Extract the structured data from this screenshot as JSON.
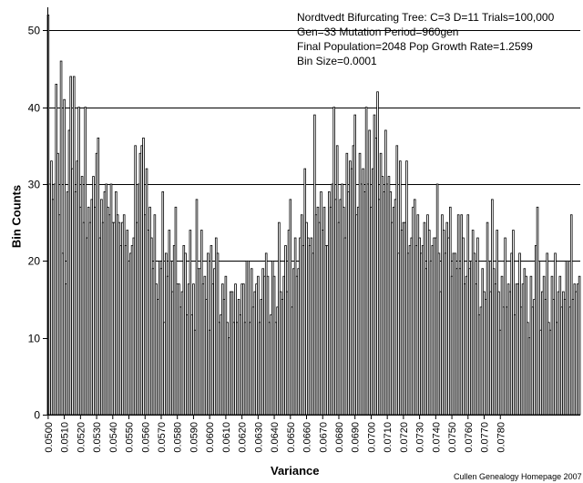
{
  "chart_data": {
    "type": "bar",
    "xlabel": "Variance",
    "ylabel": "Bin Counts",
    "ylim": [
      0,
      53
    ],
    "yticks": [
      0,
      10,
      20,
      30,
      40,
      50
    ],
    "grid": "horizontal",
    "x_start": 0.05,
    "bin_size": 0.0001,
    "xticks": [
      "0.0500",
      "0.0510",
      "0.0520",
      "0.0530",
      "0.0540",
      "0.0550",
      "0.0560",
      "0.0570",
      "0.0580",
      "0.0590",
      "0.0600",
      "0.0610",
      "0.0620",
      "0.0630",
      "0.0640",
      "0.0650",
      "0.0660",
      "0.0670",
      "0.0680",
      "0.0690",
      "0.0700",
      "0.0710",
      "0.0720",
      "0.0730",
      "0.0740",
      "0.0750",
      "0.0760",
      "0.0770",
      "0.0780"
    ],
    "annotations": [
      "Nordtvedt Bifurcating Tree: C=3 D=11 Trials=100,000",
      "Gen=33 Mutation Period=960gen",
      "Final Population=2048 Pop Growth Rate=1.2599",
      "Bin Size=0.0001"
    ],
    "credit": "Cullen Genealogy Homepage 2007",
    "values": [
      52,
      30,
      33,
      28,
      30,
      43,
      34,
      26,
      46,
      21,
      41,
      17,
      29,
      37,
      44,
      32,
      44,
      29,
      33,
      40,
      27,
      31,
      25,
      40,
      23,
      27,
      25,
      28,
      31,
      27,
      34,
      36,
      23,
      28,
      25,
      29,
      30,
      27,
      26,
      30,
      25,
      25,
      29,
      26,
      25,
      22,
      25,
      26,
      22,
      24,
      20,
      21,
      22,
      23,
      35,
      25,
      30,
      34,
      35,
      36,
      26,
      32,
      24,
      27,
      23,
      19,
      26,
      17,
      15,
      20,
      19,
      29,
      12,
      21,
      18,
      24,
      20,
      16,
      22,
      27,
      17,
      17,
      14,
      16,
      22,
      21,
      13,
      17,
      24,
      13,
      17,
      11,
      28,
      19,
      19,
      24,
      17,
      18,
      15,
      21,
      11,
      22,
      17,
      19,
      23,
      21,
      12,
      13,
      17,
      15,
      18,
      12,
      10,
      16,
      16,
      12,
      17,
      12,
      15,
      13,
      17,
      17,
      12,
      20,
      20,
      12,
      19,
      14,
      16,
      17,
      18,
      12,
      15,
      19,
      18,
      21,
      18,
      12,
      13,
      20,
      18,
      12,
      14,
      25,
      16,
      15,
      18,
      22,
      16,
      24,
      28,
      14,
      19,
      23,
      18,
      19,
      23,
      26,
      22,
      32,
      25,
      23,
      22,
      23,
      21,
      39,
      26,
      27,
      25,
      29,
      24,
      27,
      22,
      22,
      29,
      27,
      30,
      40,
      28,
      35,
      25,
      28,
      30,
      27,
      23,
      34,
      29,
      33,
      32,
      35,
      39,
      26,
      27,
      34,
      30,
      32,
      29,
      40,
      30,
      37,
      27,
      32,
      39,
      36,
      42,
      28,
      34,
      31,
      29,
      37,
      30,
      31,
      29,
      25,
      27,
      28,
      35,
      21,
      33,
      24,
      25,
      25,
      33,
      21,
      22,
      23,
      27,
      28,
      22,
      26,
      23,
      21,
      22,
      25,
      19,
      26,
      24,
      20,
      22,
      23,
      23,
      30,
      21,
      16,
      26,
      24,
      21,
      25,
      23,
      27,
      18,
      21,
      21,
      19,
      26,
      19,
      26,
      23,
      17,
      18,
      26,
      19,
      20,
      24,
      21,
      17,
      23,
      13,
      14,
      19,
      16,
      15,
      25,
      20,
      16,
      28,
      19,
      17,
      24,
      16,
      11,
      18,
      14,
      23,
      14,
      17,
      16,
      21,
      24,
      13,
      17,
      17,
      21,
      14,
      17,
      19,
      18,
      12,
      10,
      18,
      14,
      15,
      22,
      27,
      20,
      11,
      16,
      18,
      15,
      21,
      12,
      11,
      18,
      15,
      21,
      12,
      16,
      18,
      14,
      16,
      15,
      20,
      20,
      14,
      26,
      15,
      17,
      16,
      17,
      18
    ]
  }
}
